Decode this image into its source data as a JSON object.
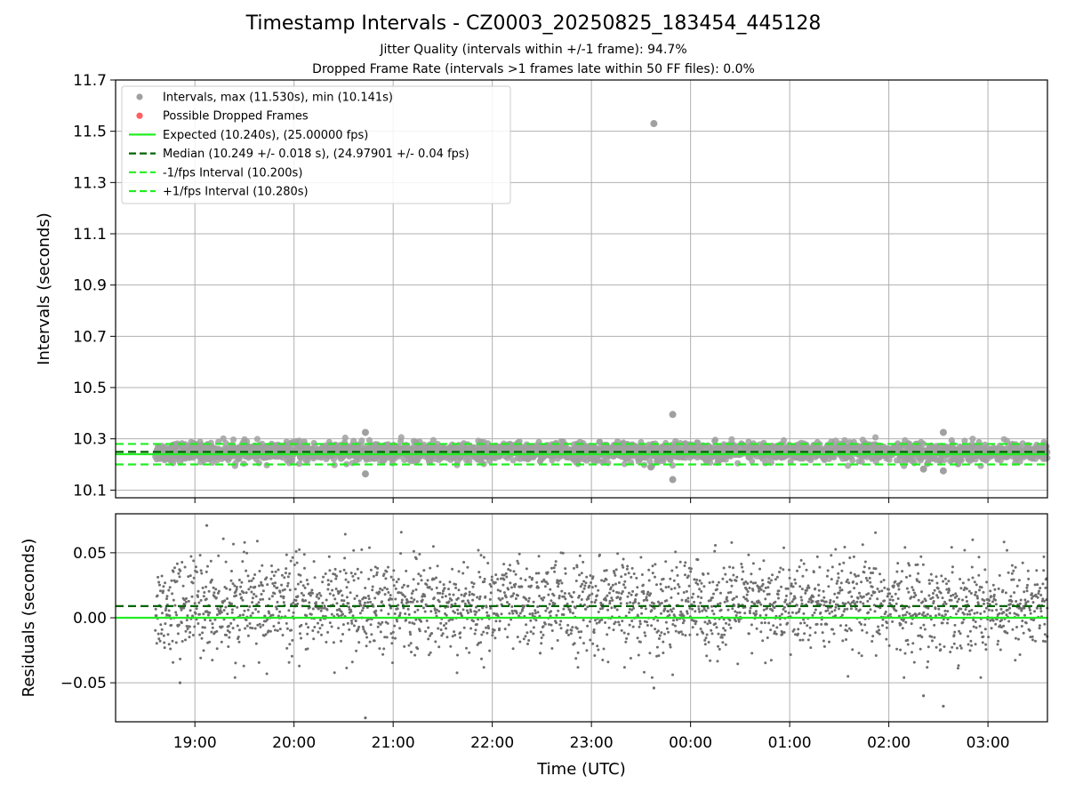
{
  "header": {
    "title": "Timestamp Intervals - CZ0003_20250825_183454_445128",
    "subtitle_1": "Jitter Quality (intervals within +/-1 frame): 94.7%",
    "subtitle_2": "Dropped Frame Rate (intervals >1 frames late within 50 FF files): 0.0%"
  },
  "chart_data": [
    {
      "type": "scatter",
      "panel": "intervals",
      "ylabel": "Intervals (seconds)",
      "xlabel": "",
      "ylim": [
        10.07,
        11.7
      ],
      "yticks": [
        "10.1",
        "10.3",
        "10.5",
        "10.7",
        "10.9",
        "11.1",
        "11.3",
        "11.5",
        "11.7"
      ],
      "xticks": [
        "19:00",
        "20:00",
        "21:00",
        "22:00",
        "23:00",
        "00:00",
        "01:00",
        "02:00",
        "03:00"
      ],
      "x_range_hours_utc": [
        18.2,
        27.6
      ],
      "data_x_range_hours_utc": [
        18.6,
        27.6
      ],
      "grid": true,
      "legend_position": "top-left",
      "legend": [
        {
          "label": "Intervals, max (11.530s), min (10.141s)",
          "marker": "dot",
          "color": "#a0a0a0"
        },
        {
          "label": "Possible Dropped Frames",
          "marker": "dot",
          "color": "#ff6060"
        },
        {
          "label": "Expected (10.240s), (25.00000 fps)",
          "marker": "solid-line",
          "color": "#22ee22"
        },
        {
          "label": "Median (10.249 +/- 0.018 s), (24.97901 +/- 0.04 fps)",
          "marker": "dashed-line",
          "color": "#006400"
        },
        {
          "label": "-1/fps Interval (10.200s)",
          "marker": "dashed-line",
          "color": "#22ee22"
        },
        {
          "label": "+1/fps Interval (10.280s)",
          "marker": "dashed-line",
          "color": "#22ee22"
        }
      ],
      "reference_lines": {
        "expected": 10.24,
        "median": 10.249,
        "minus_1fps": 10.2,
        "plus_1fps": 10.28
      },
      "interval_band": {
        "center": 10.249,
        "spread": 0.018
      },
      "outliers": [
        {
          "x": 23.63,
          "y": 11.53
        },
        {
          "x": 23.82,
          "y": 10.395
        },
        {
          "x": 23.82,
          "y": 10.141
        },
        {
          "x": 20.72,
          "y": 10.325
        },
        {
          "x": 20.72,
          "y": 10.163
        },
        {
          "x": 23.6,
          "y": 10.19
        },
        {
          "x": 26.35,
          "y": 10.182
        },
        {
          "x": 26.55,
          "y": 10.175
        },
        {
          "x": 26.55,
          "y": 10.325
        }
      ]
    },
    {
      "type": "scatter",
      "panel": "residuals",
      "ylabel": "Residuals (seconds)",
      "xlabel": "Time (UTC)",
      "ylim": [
        -0.08,
        0.08
      ],
      "yticks": [
        "−0.05",
        "0.00",
        "0.05"
      ],
      "xticks": [
        "19:00",
        "20:00",
        "21:00",
        "22:00",
        "23:00",
        "00:00",
        "01:00",
        "02:00",
        "03:00"
      ],
      "x_range_hours_utc": [
        18.2,
        27.6
      ],
      "grid": true,
      "reference_lines": {
        "zero": 0.0,
        "median_offset": 0.009
      },
      "residual_spread": 0.018,
      "outliers": [
        {
          "x": 20.72,
          "y": -0.077
        },
        {
          "x": 26.55,
          "y": -0.068
        },
        {
          "x": 26.35,
          "y": -0.06
        },
        {
          "x": 19.12,
          "y": 0.071
        },
        {
          "x": 23.63,
          "y": -0.054
        },
        {
          "x": 18.85,
          "y": -0.05
        }
      ]
    }
  ],
  "colors": {
    "points_top": "#a0a0a0",
    "points_bottom": "#6e6e6e",
    "expected_line": "#22ee22",
    "median_line": "#006400",
    "fps_bounds": "#22ee22",
    "dropped": "#ff6060",
    "grid": "#b0b0b0"
  }
}
